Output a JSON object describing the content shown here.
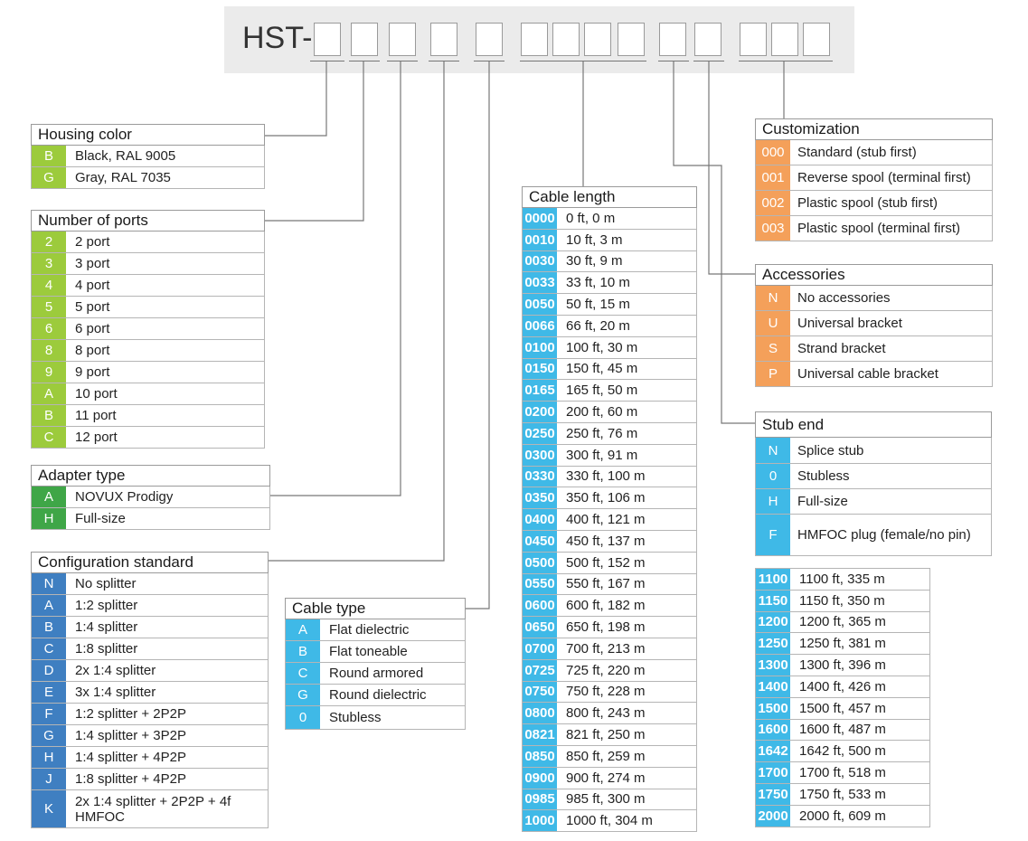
{
  "header": {
    "prefix": "HST-"
  },
  "colors": {
    "housing": "#9ccb3c",
    "adapter": "#3fa647",
    "config": "#3f7fc1",
    "cable": "#3fb9e7",
    "custom": "#f4a05a",
    "header_bg": "#ebebeb",
    "line": "#777777"
  },
  "housing_color": {
    "title": "Housing color",
    "rows": [
      {
        "code": "B",
        "label": "Black, RAL 9005"
      },
      {
        "code": "G",
        "label": "Gray, RAL 7035"
      }
    ]
  },
  "number_of_ports": {
    "title": "Number of ports",
    "rows": [
      {
        "code": "2",
        "label": "2 port"
      },
      {
        "code": "3",
        "label": "3 port"
      },
      {
        "code": "4",
        "label": "4 port"
      },
      {
        "code": "5",
        "label": "5 port"
      },
      {
        "code": "6",
        "label": "6 port"
      },
      {
        "code": "8",
        "label": "8 port"
      },
      {
        "code": "9",
        "label": "9 port"
      },
      {
        "code": "A",
        "label": "10 port"
      },
      {
        "code": "B",
        "label": "11 port"
      },
      {
        "code": "C",
        "label": "12 port"
      }
    ]
  },
  "adapter_type": {
    "title": "Adapter type",
    "rows": [
      {
        "code": "A",
        "label": "NOVUX Prodigy"
      },
      {
        "code": "H",
        "label": "Full-size"
      }
    ]
  },
  "configuration_standard": {
    "title": "Configuration standard",
    "rows": [
      {
        "code": "N",
        "label": "No splitter"
      },
      {
        "code": "A",
        "label": "1:2 splitter"
      },
      {
        "code": "B",
        "label": "1:4 splitter"
      },
      {
        "code": "C",
        "label": "1:8 splitter"
      },
      {
        "code": "D",
        "label": "2x 1:4 splitter"
      },
      {
        "code": "E",
        "label": "3x 1:4 splitter"
      },
      {
        "code": "F",
        "label": "1:2 splitter + 2P2P"
      },
      {
        "code": "G",
        "label": "1:4 splitter + 3P2P"
      },
      {
        "code": "H",
        "label": "1:4 splitter + 4P2P"
      },
      {
        "code": "J",
        "label": "1:8 splitter + 4P2P"
      },
      {
        "code": "K",
        "label": "2x 1:4 splitter + 2P2P + 4f HMFOC"
      }
    ]
  },
  "cable_type": {
    "title": "Cable type",
    "rows": [
      {
        "code": "A",
        "label": "Flat dielectric"
      },
      {
        "code": "B",
        "label": "Flat toneable"
      },
      {
        "code": "C",
        "label": "Round armored"
      },
      {
        "code": "G",
        "label": "Round dielectric"
      },
      {
        "code": "0",
        "label": "Stubless"
      }
    ]
  },
  "cable_length": {
    "title": "Cable length",
    "rows": [
      {
        "code": "0000",
        "label": "0 ft, 0 m"
      },
      {
        "code": "0010",
        "label": "10 ft, 3 m"
      },
      {
        "code": "0030",
        "label": "30 ft, 9 m"
      },
      {
        "code": "0033",
        "label": "33 ft, 10 m"
      },
      {
        "code": "0050",
        "label": "50 ft, 15 m"
      },
      {
        "code": "0066",
        "label": "66 ft, 20 m"
      },
      {
        "code": "0100",
        "label": "100 ft, 30 m"
      },
      {
        "code": "0150",
        "label": "150 ft, 45 m"
      },
      {
        "code": "0165",
        "label": "165 ft, 50 m"
      },
      {
        "code": "0200",
        "label": "200 ft, 60 m"
      },
      {
        "code": "0250",
        "label": "250 ft, 76 m"
      },
      {
        "code": "0300",
        "label": "300 ft, 91 m"
      },
      {
        "code": "0330",
        "label": "330 ft, 100 m"
      },
      {
        "code": "0350",
        "label": "350 ft, 106 m"
      },
      {
        "code": "0400",
        "label": "400 ft, 121 m"
      },
      {
        "code": "0450",
        "label": "450 ft, 137 m"
      },
      {
        "code": "0500",
        "label": "500 ft, 152 m"
      },
      {
        "code": "0550",
        "label": "550 ft, 167 m"
      },
      {
        "code": "0600",
        "label": "600 ft, 182 m"
      },
      {
        "code": "0650",
        "label": "650 ft, 198 m"
      },
      {
        "code": "0700",
        "label": "700 ft, 213 m"
      },
      {
        "code": "0725",
        "label": "725 ft, 220 m"
      },
      {
        "code": "0750",
        "label": "750 ft, 228 m"
      },
      {
        "code": "0800",
        "label": "800 ft, 243 m"
      },
      {
        "code": "0821",
        "label": "821 ft, 250 m"
      },
      {
        "code": "0850",
        "label": "850 ft, 259 m"
      },
      {
        "code": "0900",
        "label": "900 ft, 274 m"
      },
      {
        "code": "0985",
        "label": "985 ft, 300 m"
      },
      {
        "code": "1000",
        "label": "1000 ft, 304 m"
      }
    ]
  },
  "cable_length_more": {
    "rows": [
      {
        "code": "1100",
        "label": "1100 ft, 335 m"
      },
      {
        "code": "1150",
        "label": "1150 ft, 350 m"
      },
      {
        "code": "1200",
        "label": "1200 ft, 365 m"
      },
      {
        "code": "1250",
        "label": "1250 ft, 381 m"
      },
      {
        "code": "1300",
        "label": "1300 ft, 396 m"
      },
      {
        "code": "1400",
        "label": "1400 ft, 426 m"
      },
      {
        "code": "1500",
        "label": "1500 ft, 457 m"
      },
      {
        "code": "1600",
        "label": "1600 ft, 487 m"
      },
      {
        "code": "1642",
        "label": "1642 ft, 500 m"
      },
      {
        "code": "1700",
        "label": "1700 ft, 518 m"
      },
      {
        "code": "1750",
        "label": "1750 ft, 533 m"
      },
      {
        "code": "2000",
        "label": "2000 ft, 609 m"
      }
    ]
  },
  "customization": {
    "title": "Customization",
    "rows": [
      {
        "code": "000",
        "label": "Standard (stub first)"
      },
      {
        "code": "001",
        "label": "Reverse spool (terminal first)"
      },
      {
        "code": "002",
        "label": "Plastic spool (stub first)"
      },
      {
        "code": "003",
        "label": "Plastic spool (terminal first)"
      }
    ]
  },
  "accessories": {
    "title": "Accessories",
    "rows": [
      {
        "code": "N",
        "label": "No accessories"
      },
      {
        "code": "U",
        "label": "Universal bracket"
      },
      {
        "code": "S",
        "label": "Strand bracket"
      },
      {
        "code": "P",
        "label": "Universal cable bracket"
      }
    ]
  },
  "stub_end": {
    "title": "Stub end",
    "rows": [
      {
        "code": "N",
        "label": "Splice stub"
      },
      {
        "code": "0",
        "label": "Stubless"
      },
      {
        "code": "H",
        "label": "Full-size"
      },
      {
        "code": "F",
        "label": "HMFOC plug (female/no pin)"
      }
    ]
  }
}
